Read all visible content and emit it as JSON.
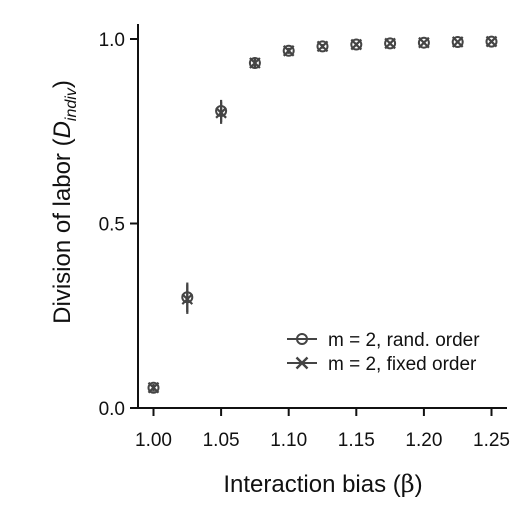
{
  "chart_data": {
    "type": "scatter",
    "xlabel_main": "Interaction bias (",
    "xlabel_symbol": "β",
    "xlabel_close": ")",
    "ylabel_main": "Division of labor (",
    "ylabel_D": "D",
    "ylabel_sub": "indiv",
    "ylabel_close": ")",
    "xlim": [
      0.99,
      1.26
    ],
    "ylim": [
      -0.01,
      1.04
    ],
    "x_ticks": [
      "1.00",
      "1.05",
      "1.10",
      "1.15",
      "1.20",
      "1.25"
    ],
    "y_ticks": [
      "0.0",
      "0.5",
      "1.0"
    ],
    "grid": false,
    "legend_position": "bottom-right",
    "series": [
      {
        "name": "m = 2, rand. order",
        "marker": "circle",
        "color": "#444444",
        "x": [
          1.0,
          1.025,
          1.05,
          1.075,
          1.1,
          1.125,
          1.15,
          1.175,
          1.2,
          1.225,
          1.25
        ],
        "y": [
          0.055,
          0.3,
          0.805,
          0.935,
          0.968,
          0.98,
          0.985,
          0.988,
          0.99,
          0.992,
          0.993
        ],
        "err": [
          0.01,
          0.04,
          0.03,
          0.012,
          0.008,
          0.006,
          0.005,
          0.005,
          0.004,
          0.004,
          0.004
        ]
      },
      {
        "name": "m = 2, fixed order",
        "marker": "x",
        "color": "#444444",
        "x": [
          1.0,
          1.025,
          1.05,
          1.075,
          1.1,
          1.125,
          1.15,
          1.175,
          1.2,
          1.225,
          1.25
        ],
        "y": [
          0.055,
          0.295,
          0.8,
          0.935,
          0.968,
          0.98,
          0.985,
          0.988,
          0.99,
          0.992,
          0.993
        ],
        "err": [
          0.01,
          0.04,
          0.03,
          0.012,
          0.008,
          0.006,
          0.005,
          0.005,
          0.004,
          0.004,
          0.004
        ]
      }
    ]
  }
}
